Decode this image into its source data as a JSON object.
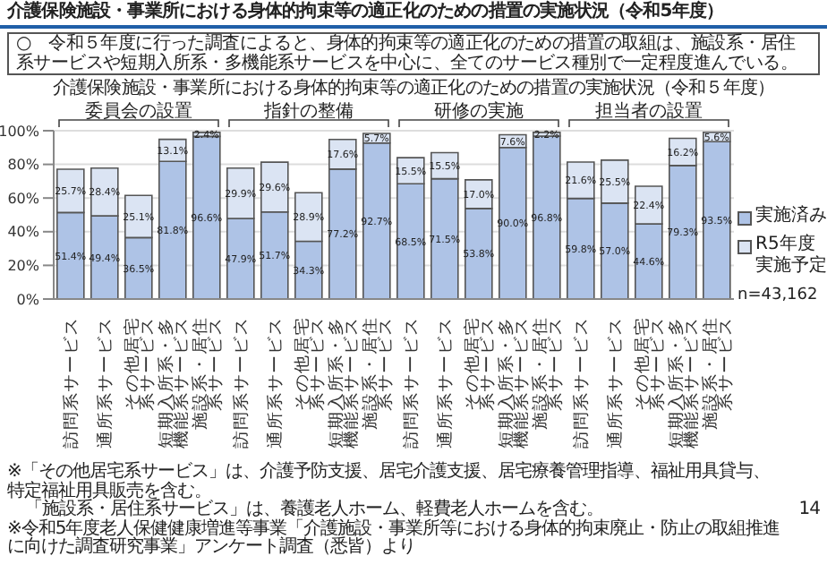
{
  "chart_data": {
    "type": "bar",
    "title": "介護保険施設・事業所における身体的拘束等の適正化のための措置の実施状況（令和5年度）",
    "subtitle": "介護保険施設・事業所における身体的拘束等の適正化のための措置の実施状況（令和５年度）",
    "annotations": [
      "○　令和５年度に行った調査によると、身体的拘束等の適正化のための措置の取組は、施設系・居住系サービスや短期入所系・多機能系サービスを中心に、全てのサービス種別で一定程度進んでいる。",
      "委員会の設置",
      "指針の整備",
      "研修の実施",
      "担当者の設置",
      "n=43,162",
      "※「その他居宅系サービス」は、介護予防支援、居宅介護支援、居宅療養管理指導、福祉用具貸与、特定福祉用具販売を含む。",
      "「施設系・居住系サービス」は、養護老人ホーム、軽費老人ホームを含む。",
      "※令和5年度老人保健健康増進等事業「介護施設・事業所等における身体的拘束廃止・防止の取組推進に向けた調査研究事業」アンケート調査（悉皆）より",
      "14"
    ],
    "categories": [
      "訪問系サービス",
      "通所系サービス",
      "その他居宅系サービス",
      "短期入所系・多機能系サービス",
      "施設系・居住系サービス",
      "訪問系サービス",
      "通所系サービス",
      "その他居宅系サービス",
      "短期入所系・多機能系サービス",
      "施設系・居住系サービス",
      "訪問系サービス",
      "通所系サービス",
      "その他居宅系サービス",
      "短期入所系・多機能系サービス",
      "施設系・居住系サービス",
      "訪問系サービス",
      "通所系サービス",
      "その他居宅系サービス",
      "短期入所系・多機能系サービス",
      "施設系・居住系サービス"
    ],
    "series": [
      {
        "name": "実施済み",
        "color": "#aec3e6",
        "values": [
          51.4,
          49.4,
          36.5,
          81.8,
          96.6,
          47.9,
          51.7,
          34.3,
          77.2,
          92.7,
          68.5,
          71.5,
          53.8,
          90.0,
          96.8,
          59.8,
          57.0,
          44.6,
          79.3,
          93.5
        ],
        "value_labels": [
          "51.4%",
          "49.4%",
          "36.5%",
          "81.8%",
          "96.6%",
          "47.9%",
          "51.7%",
          "34.3%",
          "77.2%",
          "92.7%",
          "68.5%",
          "71.5%",
          "53.8%",
          "90.0%",
          "96.8%",
          "59.8%",
          "57.0%",
          "44.6%",
          "79.3%",
          "93.5%"
        ]
      },
      {
        "name": "R5年度実施予定",
        "color": "#dbe4f3",
        "values": [
          25.7,
          28.4,
          25.1,
          13.1,
          2.4,
          29.9,
          29.6,
          28.9,
          17.6,
          5.7,
          15.5,
          15.5,
          17.0,
          7.6,
          2.2,
          21.6,
          25.5,
          22.4,
          16.2,
          5.6
        ],
        "value_labels": [
          "25.7%",
          "28.4%",
          "25.1%",
          "13.1%",
          "2.4%",
          "29.9%",
          "29.6%",
          "28.9%",
          "17.6%",
          "5.7%",
          "15.5%",
          "15.5%",
          "17.0%",
          "7.6%",
          "2.2%",
          "21.6%",
          "25.5%",
          "22.4%",
          "16.2%",
          "5.6%"
        ]
      }
    ],
    "stacked": true,
    "ylim": [
      0,
      100
    ],
    "yticks": [
      {
        "value": 0,
        "label": "0%"
      },
      {
        "value": 20,
        "label": "20%"
      },
      {
        "value": 40,
        "label": "40%"
      },
      {
        "value": 60,
        "label": "60%"
      },
      {
        "value": 80,
        "label": "80%"
      },
      {
        "value": 100,
        "label": "100%"
      }
    ],
    "grid": "y",
    "legend": "right"
  }
}
